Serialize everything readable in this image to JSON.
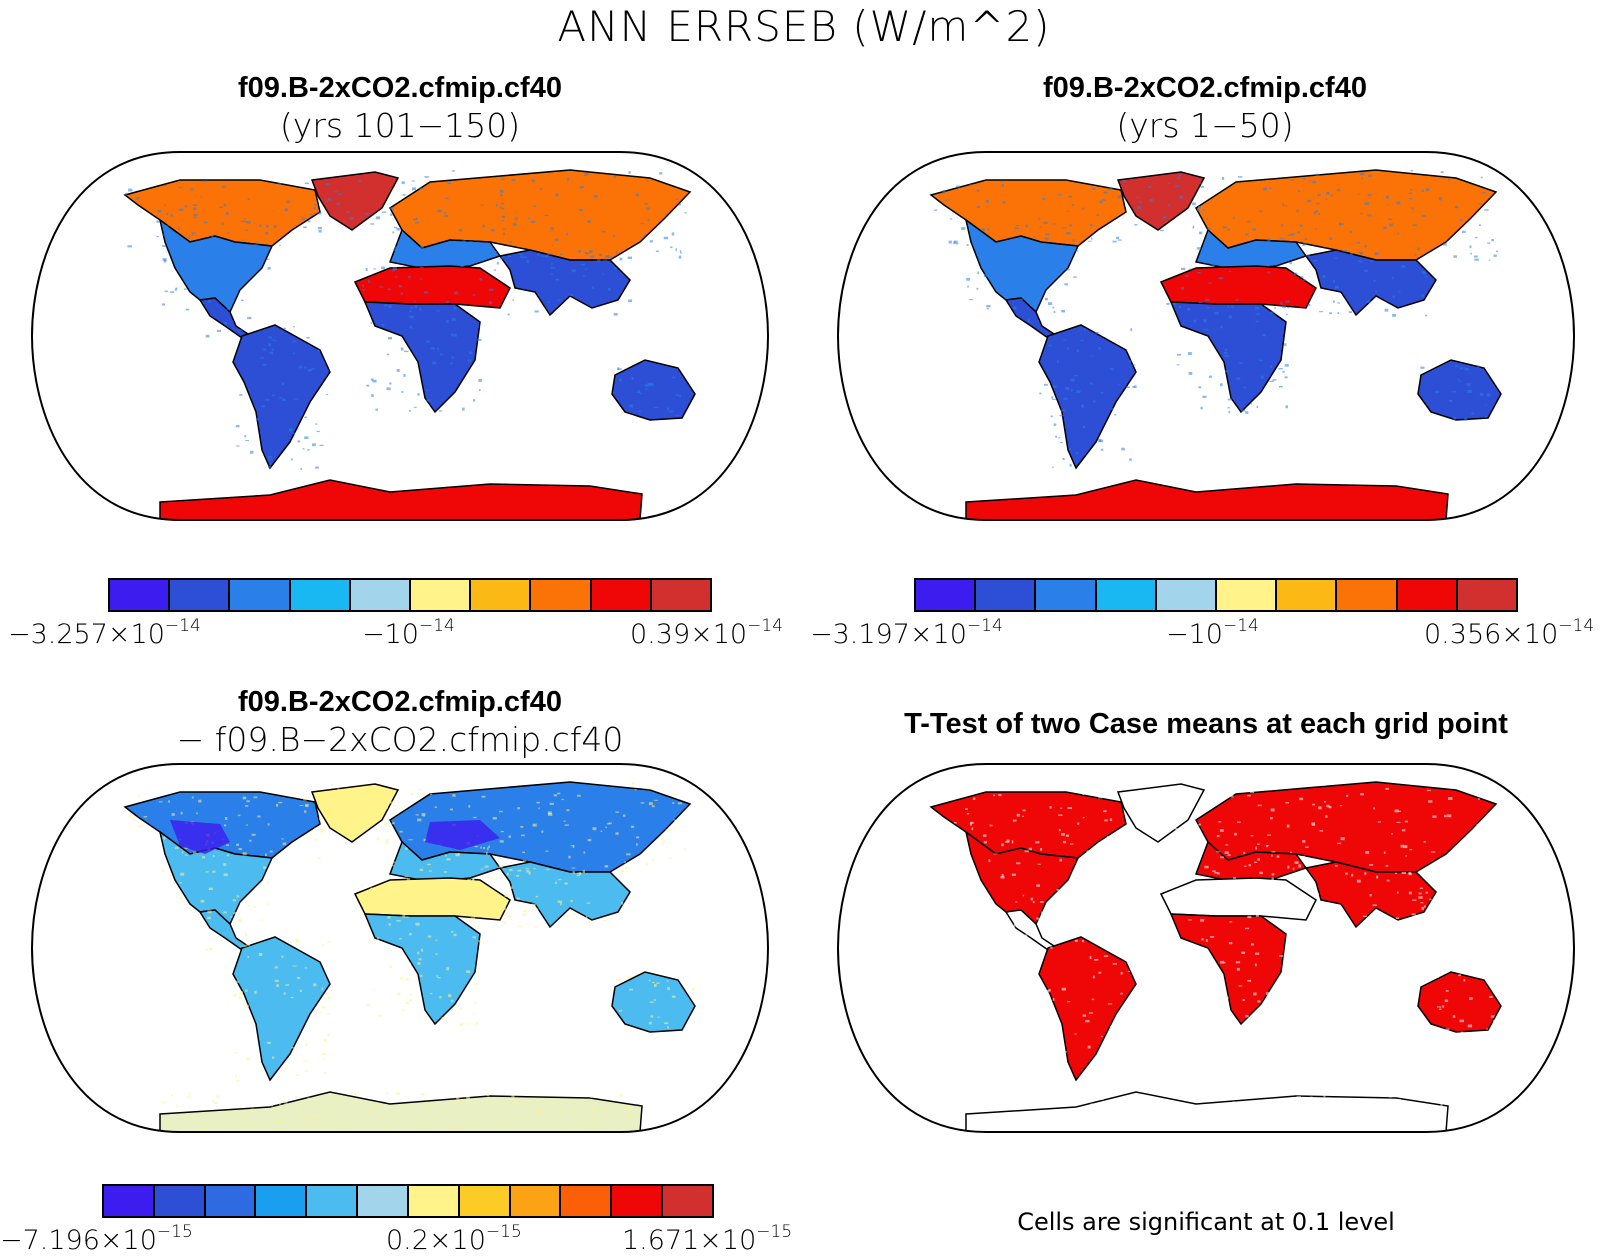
{
  "title": "ANN ERRSEB (W/m^2)",
  "panels": [
    {
      "title": "f09.B-2xCO2.cfmip.cf40",
      "subtitle": "(yrs 101−150)",
      "colorbar": {
        "colors": [
          "#3d1cf0",
          "#2c4fd6",
          "#2a7fe8",
          "#19b8f2",
          "#a2d4ec",
          "#fff38a",
          "#fbb916",
          "#fb7306",
          "#ef0707",
          "#d22f2f"
        ],
        "labels": [
          {
            "mantissa": "−3.257×10",
            "exp": "−14"
          },
          {
            "mantissa": "−10",
            "exp": "−14"
          },
          {
            "mantissa": "0.39×10",
            "exp": "−14"
          }
        ]
      }
    },
    {
      "title": "f09.B-2xCO2.cfmip.cf40",
      "subtitle": "(yrs 1−50)",
      "colorbar": {
        "colors": [
          "#3d1cf0",
          "#2c4fd6",
          "#2a7fe8",
          "#19b8f2",
          "#a2d4ec",
          "#fff38a",
          "#fbb916",
          "#fb7306",
          "#ef0707",
          "#d22f2f"
        ],
        "labels": [
          {
            "mantissa": "−3.197×10",
            "exp": "−14"
          },
          {
            "mantissa": "−10",
            "exp": "−14"
          },
          {
            "mantissa": "0.356×10",
            "exp": "−14"
          }
        ]
      }
    },
    {
      "title": "f09.B-2xCO2.cfmip.cf40",
      "subtitle": "− f09.B−2xCO2.cfmip.cf40",
      "colorbar": {
        "colors": [
          "#3d1cf0",
          "#2c4fd6",
          "#2e6be0",
          "#1a9ff0",
          "#4cbcf0",
          "#a2d4ec",
          "#fff38a",
          "#fbcb26",
          "#fba215",
          "#fb6008",
          "#ef0707",
          "#d22f2f"
        ],
        "labels": [
          {
            "mantissa": "−7.196×10",
            "exp": "−15"
          },
          {
            "mantissa": "0.2×10",
            "exp": "−15"
          },
          {
            "mantissa": "1.671×10",
            "exp": "−15"
          }
        ]
      }
    },
    {
      "title": "T-Test of two Case means at each grid point",
      "footnote": "Cells are significant at 0.1 level"
    }
  ],
  "map_style": {
    "outline_color": "#000000",
    "ocean_color": "#ffffff",
    "panel1_land": {
      "north": "#fb7306",
      "mid": "#2a7fe8",
      "desert": "#ef0707",
      "tropics": "#2c4fd6",
      "greenland": "#d22f2f",
      "antarctica": "#ef0707"
    },
    "panel2_land": {
      "north": "#fb7306",
      "mid": "#2a7fe8",
      "desert": "#ef0707",
      "tropics": "#2c4fd6",
      "greenland": "#d22f2f",
      "antarctica": "#ef0707"
    },
    "panel3_land": {
      "north": "#2a7fe8",
      "mid": "#4cbcf0",
      "desert": "#fff38a",
      "tropics": "#4cbcf0",
      "greenland": "#fff38a",
      "antarctica": "#e9f1c4",
      "strong": "#3d1cf0"
    },
    "panel4_land": {
      "significant": "#ef0707",
      "insignificant": "#ffffff"
    }
  }
}
